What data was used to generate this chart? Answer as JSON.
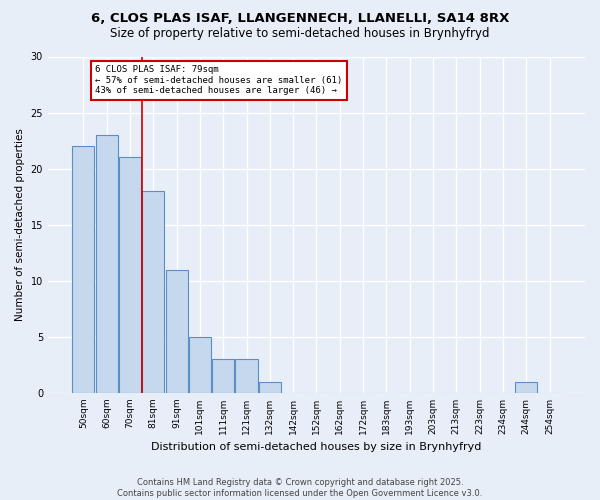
{
  "title1": "6, CLOS PLAS ISAF, LLANGENNECH, LLANELLI, SA14 8RX",
  "title2": "Size of property relative to semi-detached houses in Brynhyfryd",
  "xlabel": "Distribution of semi-detached houses by size in Brynhyfryd",
  "ylabel": "Number of semi-detached properties",
  "bins": [
    "50sqm",
    "60sqm",
    "70sqm",
    "81sqm",
    "91sqm",
    "101sqm",
    "111sqm",
    "121sqm",
    "132sqm",
    "142sqm",
    "152sqm",
    "162sqm",
    "172sqm",
    "183sqm",
    "193sqm",
    "203sqm",
    "213sqm",
    "223sqm",
    "234sqm",
    "244sqm",
    "254sqm"
  ],
  "values": [
    22,
    23,
    21,
    18,
    11,
    5,
    3,
    3,
    1,
    0,
    0,
    0,
    0,
    0,
    0,
    0,
    0,
    0,
    0,
    1,
    0
  ],
  "bar_color": "#c5d8ee",
  "bar_edge_color": "#5a8fc5",
  "vline_color": "#cc0000",
  "annotation_text": "6 CLOS PLAS ISAF: 79sqm\n← 57% of semi-detached houses are smaller (61)\n43% of semi-detached houses are larger (46) →",
  "annotation_box_color": "#ffffff",
  "annotation_box_edge": "#cc0000",
  "ylim": [
    0,
    30
  ],
  "yticks": [
    0,
    5,
    10,
    15,
    20,
    25,
    30
  ],
  "footer": "Contains HM Land Registry data © Crown copyright and database right 2025.\nContains public sector information licensed under the Open Government Licence v3.0.",
  "bg_color": "#e8eef7",
  "plot_bg_color": "#e8eef7",
  "grid_color": "#ffffff"
}
